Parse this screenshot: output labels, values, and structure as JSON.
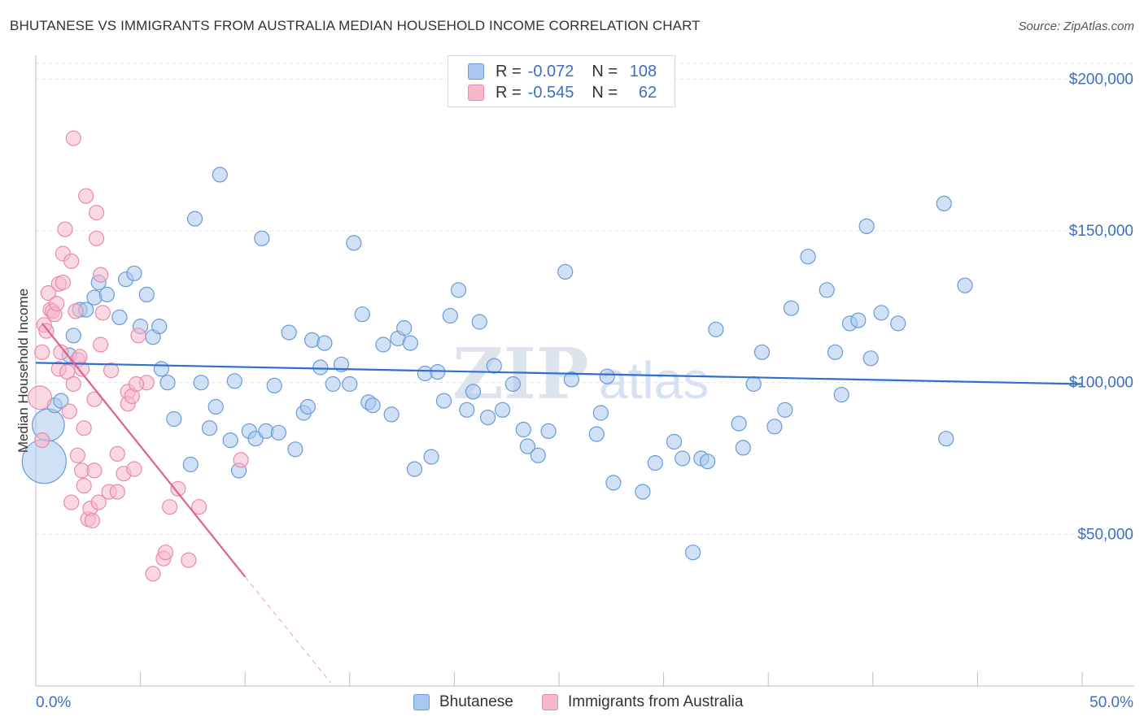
{
  "header": {
    "title": "BHUTANESE VS IMMIGRANTS FROM AUSTRALIA MEDIAN HOUSEHOLD INCOME CORRELATION CHART",
    "source": "Source: ZipAtlas.com"
  },
  "watermark": {
    "zip": "ZIP",
    "atlas": "atlas"
  },
  "legend": {
    "rows": [
      {
        "r_label": "R =",
        "r_value": "-0.072",
        "n_label": "N =",
        "n_value": "108"
      },
      {
        "r_label": "R =",
        "r_value": "-0.545",
        "n_label": "N =",
        "n_value": "62"
      }
    ]
  },
  "bottom_legend": {
    "items": [
      {
        "label": "Bhutanese"
      },
      {
        "label": "Immigrants from Australia"
      }
    ]
  },
  "chart_data": {
    "type": "scatter",
    "ylabel": "Median Household Income",
    "x_tick_labels": [
      "0.0%",
      "50.0%"
    ],
    "y_tick_labels": [
      "$200,000",
      "$150,000",
      "$100,000",
      "$50,000"
    ],
    "y_ticks": [
      200000,
      150000,
      100000,
      50000
    ],
    "xlim": [
      0,
      50
    ],
    "ylim": [
      0,
      210000
    ],
    "grid": true,
    "colors": {
      "blue_fill": "#aac8ef",
      "blue_stroke": "#6a9ad8",
      "blue_line": "#2e6fcf",
      "pink_fill": "#f6b8cc",
      "pink_stroke": "#e98aaa",
      "pink_line": "#e06090",
      "tick_text": "#3a6fc4"
    },
    "series": [
      {
        "name": "Bhutanese",
        "trend": {
          "x": [
            0,
            50
          ],
          "y": [
            106500,
            99500
          ]
        },
        "points": [
          [
            0.4,
            74000,
            3
          ],
          [
            0.6,
            86000,
            2.2
          ],
          [
            0.9,
            92500,
            1
          ],
          [
            1.2,
            94000,
            1
          ],
          [
            1.6,
            109000,
            1
          ],
          [
            1.8,
            115500,
            1
          ],
          [
            2.1,
            124000,
            1
          ],
          [
            2.4,
            124000,
            1
          ],
          [
            2.8,
            128000,
            1
          ],
          [
            3.0,
            133000,
            1
          ],
          [
            3.4,
            129000,
            1
          ],
          [
            4.0,
            121500,
            1
          ],
          [
            4.3,
            134000,
            1
          ],
          [
            4.7,
            136000,
            1
          ],
          [
            5.0,
            118500,
            1
          ],
          [
            5.3,
            129000,
            1
          ],
          [
            5.6,
            115000,
            1
          ],
          [
            5.9,
            118500,
            1
          ],
          [
            6.0,
            104500,
            1
          ],
          [
            6.3,
            100000,
            1
          ],
          [
            6.6,
            88000,
            1
          ],
          [
            7.4,
            73000,
            1
          ],
          [
            7.6,
            154000,
            1
          ],
          [
            7.9,
            100000,
            1
          ],
          [
            8.3,
            85000,
            1
          ],
          [
            8.6,
            92000,
            1
          ],
          [
            8.8,
            168500,
            1
          ],
          [
            9.3,
            81000,
            1
          ],
          [
            9.5,
            100500,
            1
          ],
          [
            9.7,
            71000,
            1
          ],
          [
            10.2,
            84000,
            1
          ],
          [
            10.5,
            81500,
            1
          ],
          [
            10.8,
            147500,
            1
          ],
          [
            11.0,
            84000,
            1
          ],
          [
            11.4,
            99000,
            1
          ],
          [
            11.6,
            83500,
            1
          ],
          [
            12.1,
            116500,
            1
          ],
          [
            12.4,
            78000,
            1
          ],
          [
            12.8,
            90000,
            1
          ],
          [
            13.0,
            92000,
            1
          ],
          [
            13.2,
            114000,
            1
          ],
          [
            13.6,
            105000,
            1
          ],
          [
            13.8,
            113000,
            1
          ],
          [
            14.2,
            99500,
            1
          ],
          [
            14.6,
            106000,
            1
          ],
          [
            15.0,
            99500,
            1
          ],
          [
            15.2,
            146000,
            1
          ],
          [
            15.6,
            122500,
            1
          ],
          [
            15.9,
            93500,
            1
          ],
          [
            16.1,
            92500,
            1
          ],
          [
            16.6,
            112500,
            1
          ],
          [
            17.0,
            89500,
            1
          ],
          [
            17.3,
            114500,
            1
          ],
          [
            17.6,
            118000,
            1
          ],
          [
            17.9,
            113000,
            1
          ],
          [
            18.1,
            71500,
            1
          ],
          [
            18.6,
            103000,
            1
          ],
          [
            18.9,
            75500,
            1
          ],
          [
            19.2,
            103500,
            1
          ],
          [
            19.5,
            94000,
            1
          ],
          [
            19.8,
            122000,
            1
          ],
          [
            20.2,
            130500,
            1
          ],
          [
            20.6,
            91000,
            1
          ],
          [
            20.9,
            97000,
            1
          ],
          [
            21.2,
            120000,
            1
          ],
          [
            21.6,
            88500,
            1
          ],
          [
            21.9,
            105500,
            1
          ],
          [
            22.3,
            91000,
            1
          ],
          [
            22.8,
            99500,
            1
          ],
          [
            23.3,
            84500,
            1
          ],
          [
            23.5,
            79000,
            1
          ],
          [
            24.0,
            76000,
            1
          ],
          [
            24.5,
            84000,
            1
          ],
          [
            25.3,
            136500,
            1
          ],
          [
            25.6,
            101000,
            1
          ],
          [
            26.8,
            83000,
            1
          ],
          [
            27.0,
            90000,
            1
          ],
          [
            27.3,
            102000,
            1
          ],
          [
            27.6,
            67000,
            1
          ],
          [
            29.0,
            64000,
            1
          ],
          [
            29.6,
            73500,
            1
          ],
          [
            30.5,
            80500,
            1
          ],
          [
            30.9,
            75000,
            1
          ],
          [
            31.4,
            44000,
            1
          ],
          [
            31.8,
            75000,
            1
          ],
          [
            32.1,
            74000,
            1
          ],
          [
            32.5,
            117500,
            1
          ],
          [
            33.6,
            86500,
            1
          ],
          [
            33.8,
            78500,
            1
          ],
          [
            34.3,
            99500,
            1
          ],
          [
            34.7,
            110000,
            1
          ],
          [
            35.3,
            85500,
            1
          ],
          [
            35.8,
            91000,
            1
          ],
          [
            36.1,
            124500,
            1
          ],
          [
            36.9,
            141500,
            1
          ],
          [
            37.8,
            130500,
            1
          ],
          [
            38.2,
            110000,
            1
          ],
          [
            38.5,
            96000,
            1
          ],
          [
            38.9,
            119500,
            1
          ],
          [
            39.3,
            120500,
            1
          ],
          [
            39.7,
            151500,
            1
          ],
          [
            39.9,
            108000,
            1
          ],
          [
            40.4,
            123000,
            1
          ],
          [
            41.2,
            119500,
            1
          ],
          [
            43.4,
            159000,
            1
          ],
          [
            43.5,
            81500,
            1
          ],
          [
            44.4,
            132000,
            1
          ]
        ]
      },
      {
        "name": "Immigrants from Australia",
        "trend": {
          "x": [
            0.3,
            10.0
          ],
          "y": [
            119500,
            36000
          ]
        },
        "trend_ext": {
          "x": [
            10.0,
            14.1
          ],
          "y": [
            36000,
            1000
          ]
        },
        "points": [
          [
            0.2,
            95000,
            1.6
          ],
          [
            0.3,
            81000,
            1
          ],
          [
            0.3,
            110000,
            1
          ],
          [
            0.4,
            119000,
            1
          ],
          [
            0.5,
            117000,
            1
          ],
          [
            0.6,
            129500,
            1
          ],
          [
            0.7,
            124000,
            1
          ],
          [
            0.8,
            123500,
            1
          ],
          [
            0.9,
            122500,
            1
          ],
          [
            1.0,
            126000,
            1
          ],
          [
            1.1,
            104500,
            1
          ],
          [
            1.1,
            132500,
            1
          ],
          [
            1.2,
            110000,
            1
          ],
          [
            1.3,
            133000,
            1
          ],
          [
            1.3,
            142500,
            1
          ],
          [
            1.4,
            150500,
            1
          ],
          [
            1.5,
            103500,
            1
          ],
          [
            1.6,
            90500,
            1
          ],
          [
            1.7,
            140000,
            1
          ],
          [
            1.7,
            60500,
            1
          ],
          [
            1.8,
            99500,
            1
          ],
          [
            1.8,
            180500,
            1
          ],
          [
            1.9,
            123500,
            1
          ],
          [
            2.0,
            107500,
            1
          ],
          [
            2.0,
            76000,
            1
          ],
          [
            2.2,
            104500,
            1
          ],
          [
            2.2,
            71000,
            1
          ],
          [
            2.3,
            85000,
            1
          ],
          [
            2.3,
            66000,
            1
          ],
          [
            2.4,
            161500,
            1
          ],
          [
            2.5,
            55000,
            1
          ],
          [
            2.6,
            58500,
            1
          ],
          [
            2.7,
            54500,
            1
          ],
          [
            2.8,
            94500,
            1
          ],
          [
            2.8,
            71000,
            1
          ],
          [
            2.9,
            147500,
            1
          ],
          [
            2.9,
            156000,
            1
          ],
          [
            3.0,
            60500,
            1
          ],
          [
            3.1,
            135500,
            1
          ],
          [
            3.1,
            112500,
            1
          ],
          [
            3.2,
            123000,
            1
          ],
          [
            3.5,
            64000,
            1
          ],
          [
            3.6,
            104000,
            1
          ],
          [
            3.9,
            76500,
            1
          ],
          [
            3.9,
            64000,
            1
          ],
          [
            4.2,
            70000,
            1
          ],
          [
            4.4,
            97000,
            1
          ],
          [
            4.4,
            93000,
            1
          ],
          [
            4.6,
            95500,
            1
          ],
          [
            4.7,
            71500,
            1
          ],
          [
            4.9,
            115500,
            1
          ],
          [
            5.3,
            100000,
            1
          ],
          [
            5.6,
            37000,
            1
          ],
          [
            6.1,
            42000,
            1
          ],
          [
            6.2,
            44000,
            1
          ],
          [
            6.4,
            59000,
            1
          ],
          [
            6.8,
            65000,
            1
          ],
          [
            7.3,
            41500,
            1
          ],
          [
            7.8,
            59000,
            1
          ],
          [
            9.8,
            74500,
            1
          ],
          [
            2.1,
            108500,
            1
          ],
          [
            4.8,
            99500,
            1
          ]
        ]
      }
    ]
  }
}
